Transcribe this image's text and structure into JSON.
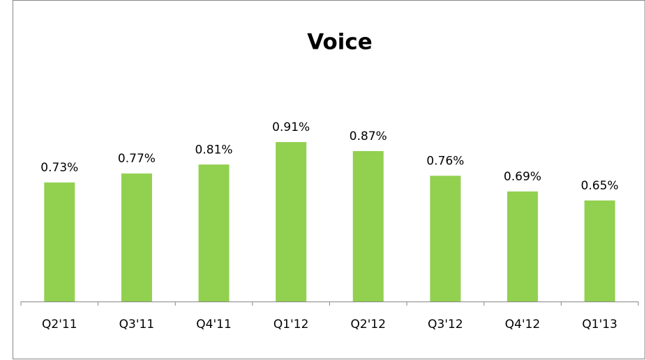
{
  "chart_data": {
    "type": "bar",
    "title": "Voice",
    "categories": [
      "Q2'11",
      "Q3'11",
      "Q4'11",
      "Q1'12",
      "Q2'12",
      "Q3'12",
      "Q4'12",
      "Q1'13"
    ],
    "values": [
      0.73,
      0.77,
      0.81,
      0.91,
      0.87,
      0.76,
      0.69,
      0.65
    ],
    "value_labels": [
      "0.73%",
      "0.77%",
      "0.81%",
      "0.91%",
      "0.87%",
      "0.76%",
      "0.69%",
      "0.65%"
    ],
    "color": "#92d050",
    "ylim": [
      0.2,
      1.0
    ]
  }
}
